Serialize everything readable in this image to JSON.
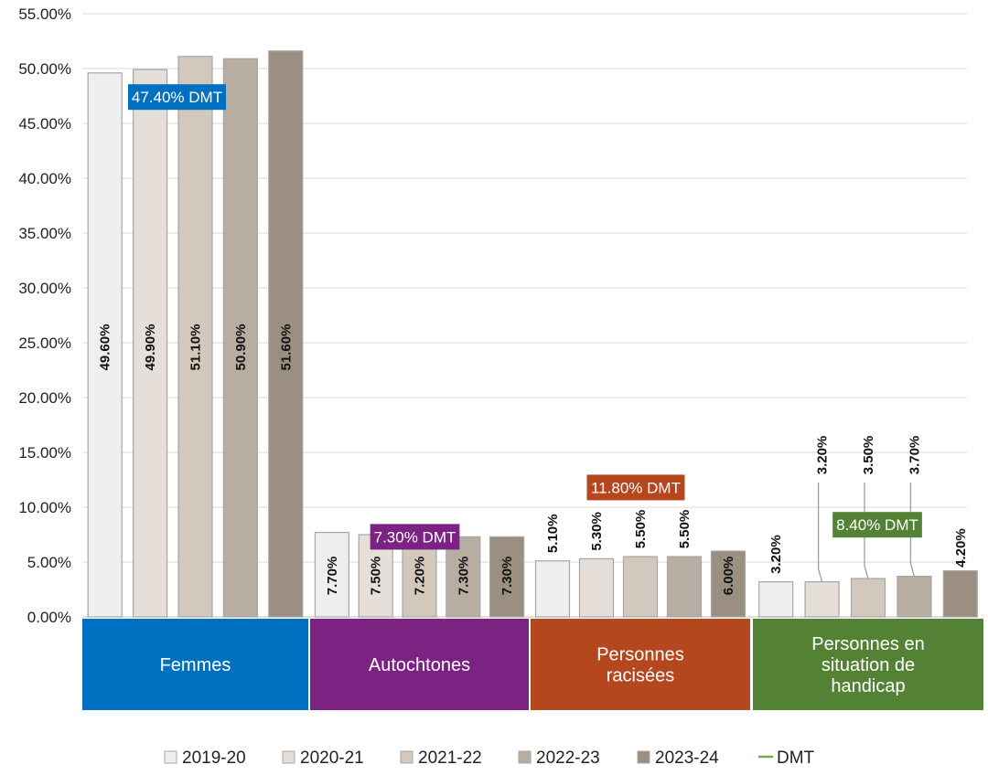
{
  "chart_data": {
    "type": "bar",
    "title": "",
    "xlabel": "",
    "ylabel": "",
    "ylim": [
      0,
      55
    ],
    "yticks": [
      "0.00%",
      "5.00%",
      "10.00%",
      "15.00%",
      "20.00%",
      "25.00%",
      "30.00%",
      "35.00%",
      "40.00%",
      "45.00%",
      "50.00%",
      "55.00%"
    ],
    "grid": true,
    "legend_position": "bottom",
    "categories": [
      "Femmes",
      "Autochtones",
      "Personnes racisées",
      "Personnes en situation de handicap"
    ],
    "category_lines": [
      [
        "Femmes"
      ],
      [
        "Autochtones"
      ],
      [
        "Personnes",
        "racisées"
      ],
      [
        "Personnes en",
        "situation de",
        "handicap"
      ]
    ],
    "category_colors": [
      "#0070c0",
      "#7b2282",
      "#b5471f",
      "#548235"
    ],
    "series": [
      {
        "name": "2019-20",
        "color": "#efefef",
        "values": [
          49.6,
          7.7,
          5.1,
          3.2
        ],
        "labels": [
          "49.60%",
          "7.70%",
          "5.10%",
          "3.20%"
        ]
      },
      {
        "name": "2020-21",
        "color": "#e6ded8",
        "values": [
          49.9,
          7.5,
          5.3,
          3.2
        ],
        "labels": [
          "49.90%",
          "7.50%",
          "5.30%",
          "3.20%"
        ]
      },
      {
        "name": "2021-22",
        "color": "#d2c8bc",
        "values": [
          51.1,
          7.2,
          5.5,
          3.5
        ],
        "labels": [
          "51.10%",
          "7.20%",
          "5.50%",
          "3.50%"
        ]
      },
      {
        "name": "2022-23",
        "color": "#b8ada1",
        "values": [
          50.9,
          7.3,
          5.5,
          3.7
        ],
        "labels": [
          "50.90%",
          "7.30%",
          "5.50%",
          "3.70%"
        ]
      },
      {
        "name": "2023-24",
        "color": "#9b8f82",
        "values": [
          51.6,
          7.3,
          6.0,
          4.2
        ],
        "labels": [
          "51.60%",
          "7.30%",
          "6.00%",
          "4.20%"
        ]
      }
    ],
    "dmt": {
      "name": "DMT",
      "color": "#70ad47",
      "values": [
        47.4,
        7.3,
        11.8,
        8.4
      ],
      "labels": [
        "47.40% DMT",
        "7.30% DMT",
        "11.80% DMT",
        "8.40% DMT"
      ]
    }
  }
}
